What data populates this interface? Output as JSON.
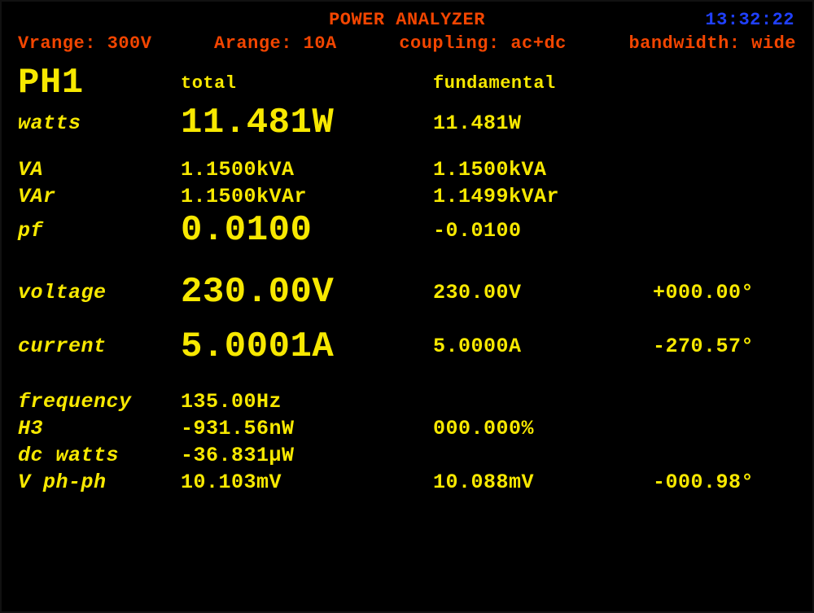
{
  "title": "POWER ANALYZER",
  "clock": "13:32:22",
  "settings": {
    "vrange": "Vrange: 300V",
    "arange": "Arange: 10A",
    "coupling": "coupling: ac+dc",
    "bandwidth": "bandwidth: wide"
  },
  "headers": {
    "phase": "PH1",
    "total": "total",
    "fundamental": "fundamental"
  },
  "rows": {
    "watts": {
      "label": "watts",
      "total": "11.481W",
      "fund": "11.481W",
      "phase": ""
    },
    "va": {
      "label": "VA",
      "total": "1.1500kVA",
      "fund": "1.1500kVA",
      "phase": ""
    },
    "var": {
      "label": "VAr",
      "total": "1.1500kVAr",
      "fund": "1.1499kVAr",
      "phase": ""
    },
    "pf": {
      "label": "pf",
      "total": "0.0100",
      "fund": "-0.0100",
      "phase": ""
    },
    "voltage": {
      "label": "voltage",
      "total": "230.00V",
      "fund": "230.00V",
      "phase": "+000.00°"
    },
    "current": {
      "label": "current",
      "total": "5.0001A",
      "fund": "5.0000A",
      "phase": "-270.57°"
    },
    "frequency": {
      "label": "frequency",
      "total": "135.00Hz",
      "fund": "",
      "phase": ""
    },
    "h3": {
      "label": "H3",
      "total": "-931.56nW",
      "fund": "000.000%",
      "phase": ""
    },
    "dcwatts": {
      "label": "dc watts",
      "total": "-36.831µW",
      "fund": "",
      "phase": ""
    },
    "vphph": {
      "label": "V ph-ph",
      "total": "10.103mV",
      "fund": "10.088mV",
      "phase": "-000.98°"
    }
  },
  "colors": {
    "title": "#f24500",
    "settings": "#f24500",
    "clock": "#2040ff",
    "data": "#f7e800",
    "background": "#000000"
  }
}
